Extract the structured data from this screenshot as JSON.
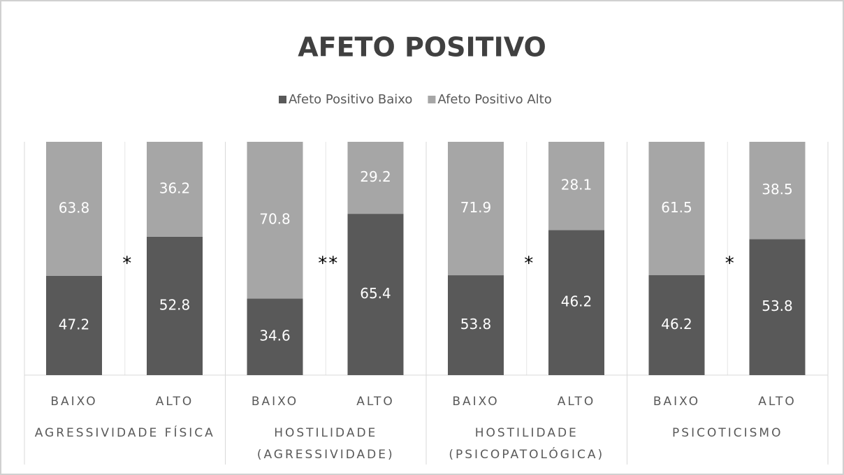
{
  "chart_data": {
    "type": "stacked100",
    "title": "AFETO POSITIVO",
    "categories": [
      "BAIXO",
      "ALTO",
      "BAIXO",
      "ALTO",
      "BAIXO",
      "ALTO",
      "BAIXO",
      "ALTO"
    ],
    "groups": [
      {
        "label": [
          "AGRESSIVIDADE FÍSICA"
        ],
        "annotation": "*"
      },
      {
        "label": [
          "HOSTILIDADE",
          "(AGRESSIVIDADE)"
        ],
        "annotation": "**"
      },
      {
        "label": [
          "HOSTILIDADE",
          "(PSICOPATOLÓGICA)"
        ],
        "annotation": "*"
      },
      {
        "label": [
          "PSICOTICISMO"
        ],
        "annotation": "*"
      }
    ],
    "series": [
      {
        "name": "Afeto Positivo Baixo",
        "color": "#595959",
        "values": [
          47.2,
          52.8,
          34.6,
          65.4,
          53.8,
          46.2,
          46.2,
          53.8
        ]
      },
      {
        "name": "Afeto Positivo Alto",
        "color": "#a6a6a6",
        "values": [
          63.8,
          36.2,
          70.8,
          29.2,
          71.9,
          28.1,
          61.5,
          38.5
        ]
      }
    ],
    "legend": "top"
  }
}
